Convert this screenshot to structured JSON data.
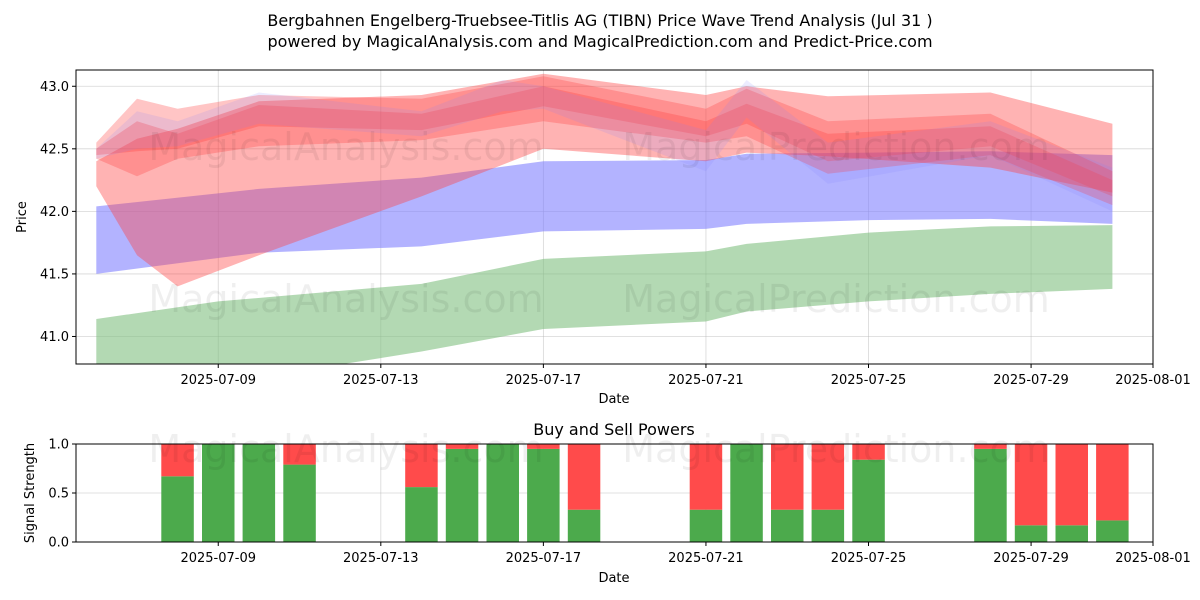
{
  "header": {
    "title_line1": "Bergbahnen Engelberg-Truebsee-Titlis AG (TIBN) Price Wave Trend Analysis (Jul 31 )",
    "title_line2": "powered by MagicalAnalysis.com and MagicalPrediction.com and Predict-Price.com"
  },
  "watermarks": [
    "MagicalAnalysis.com",
    "MagicalPrediction.com"
  ],
  "colors": {
    "blue_band": "#8080ff",
    "green_band": "#80c080",
    "red_band": "#ff4040",
    "buy": "#4caa4c",
    "sell": "#ff4b4b"
  },
  "chart_data": [
    {
      "type": "area",
      "title": "",
      "xlabel": "Date",
      "ylabel": "Price",
      "x_range": [
        "2025-07-05T12:00",
        "2025-08-01T00:00"
      ],
      "ylim": [
        40.78,
        43.13
      ],
      "x_ticks": [
        "2025-07-09",
        "2025-07-13",
        "2025-07-17",
        "2025-07-21",
        "2025-07-25",
        "2025-07-29",
        "2025-08-01"
      ],
      "y_ticks": [
        41.0,
        41.5,
        42.0,
        42.5,
        43.0
      ],
      "grid": true,
      "bands": [
        {
          "color": "blue",
          "opacity": 0.6,
          "x": [
            "2025-07-06",
            "2025-07-10",
            "2025-07-14",
            "2025-07-17",
            "2025-07-21",
            "2025-07-22",
            "2025-07-25",
            "2025-07-28",
            "2025-07-31"
          ],
          "upper": [
            42.04,
            42.18,
            42.27,
            42.4,
            42.41,
            42.46,
            42.47,
            42.48,
            42.45
          ],
          "lower": [
            41.5,
            41.67,
            41.72,
            41.84,
            41.86,
            41.9,
            41.93,
            41.94,
            41.9
          ]
        },
        {
          "color": "green",
          "opacity": 0.6,
          "x": [
            "2025-07-06",
            "2025-07-09",
            "2025-07-14",
            "2025-07-17",
            "2025-07-21",
            "2025-07-22",
            "2025-07-25",
            "2025-07-28",
            "2025-07-31"
          ],
          "upper": [
            41.14,
            41.28,
            41.42,
            41.62,
            41.68,
            41.74,
            41.83,
            41.88,
            41.89
          ],
          "lower": [
            40.78,
            40.62,
            40.88,
            41.06,
            41.12,
            41.2,
            41.28,
            41.34,
            41.38
          ]
        },
        {
          "color": "red",
          "opacity": 0.4,
          "x": [
            "2025-07-06",
            "2025-07-07",
            "2025-07-08",
            "2025-07-10",
            "2025-07-14",
            "2025-07-17",
            "2025-07-21",
            "2025-07-22",
            "2025-07-24",
            "2025-07-28",
            "2025-07-31"
          ],
          "upper": [
            42.4,
            42.58,
            42.66,
            42.88,
            42.93,
            43.1,
            42.93,
            43.0,
            42.92,
            42.95,
            42.7
          ],
          "lower": [
            42.2,
            41.65,
            41.4,
            41.65,
            42.12,
            42.5,
            42.4,
            42.47,
            42.44,
            42.35,
            42.15
          ]
        },
        {
          "color": "red",
          "opacity": 0.3,
          "x": [
            "2025-07-06",
            "2025-07-07",
            "2025-07-08",
            "2025-07-10",
            "2025-07-14",
            "2025-07-17",
            "2025-07-21",
            "2025-07-22",
            "2025-07-24",
            "2025-07-28",
            "2025-07-31"
          ],
          "upper": [
            42.55,
            42.9,
            42.82,
            42.93,
            42.9,
            43.08,
            42.82,
            42.98,
            42.72,
            42.78,
            42.32
          ],
          "lower": [
            42.42,
            42.28,
            42.42,
            42.52,
            42.57,
            42.72,
            42.55,
            42.6,
            42.3,
            42.45,
            42.05
          ]
        },
        {
          "color": "red",
          "opacity": 0.3,
          "x": [
            "2025-07-06",
            "2025-07-07",
            "2025-07-08",
            "2025-07-10",
            "2025-07-14",
            "2025-07-17",
            "2025-07-21",
            "2025-07-22",
            "2025-07-24",
            "2025-07-28",
            "2025-07-31"
          ],
          "upper": [
            42.5,
            42.72,
            42.62,
            42.85,
            42.78,
            43.0,
            42.72,
            42.86,
            42.62,
            42.68,
            42.25
          ],
          "lower": [
            42.45,
            42.48,
            42.5,
            42.68,
            42.65,
            42.84,
            42.6,
            42.7,
            42.4,
            42.52,
            42.12
          ]
        },
        {
          "color": "blue",
          "opacity": 0.15,
          "x": [
            "2025-07-06",
            "2025-07-07",
            "2025-07-08",
            "2025-07-10",
            "2025-07-14",
            "2025-07-16",
            "2025-07-17",
            "2025-07-21",
            "2025-07-22",
            "2025-07-24",
            "2025-07-28",
            "2025-07-31"
          ],
          "upper": [
            42.5,
            42.8,
            42.72,
            42.95,
            42.8,
            43.05,
            43.0,
            42.65,
            43.05,
            42.55,
            42.72,
            42.35
          ],
          "lower": [
            42.42,
            42.5,
            42.52,
            42.7,
            42.6,
            42.8,
            42.82,
            42.32,
            42.75,
            42.22,
            42.45,
            42.0
          ]
        }
      ]
    },
    {
      "type": "bar",
      "title": "Buy and Sell Powers",
      "xlabel": "Date",
      "ylabel": "Signal Strength",
      "ylim": [
        0,
        1
      ],
      "y_ticks": [
        "0.0",
        "0.5",
        "1.0"
      ],
      "x_ticks": [
        "2025-07-09",
        "2025-07-13",
        "2025-07-17",
        "2025-07-21",
        "2025-07-25",
        "2025-07-29",
        "2025-08-01"
      ],
      "grid": true,
      "dates": [
        "2025-07-08",
        "2025-07-09",
        "2025-07-10",
        "2025-07-11",
        "2025-07-14",
        "2025-07-15",
        "2025-07-16",
        "2025-07-17",
        "2025-07-18",
        "2025-07-21",
        "2025-07-22",
        "2025-07-23",
        "2025-07-24",
        "2025-07-25",
        "2025-07-28",
        "2025-07-29",
        "2025-07-30",
        "2025-07-31"
      ],
      "buy": [
        0.67,
        1.0,
        1.0,
        0.79,
        0.56,
        0.95,
        1.0,
        0.95,
        0.33,
        0.33,
        1.0,
        0.33,
        0.33,
        0.84,
        0.95,
        0.17,
        0.17,
        0.22
      ],
      "sell": [
        0.33,
        0.0,
        0.0,
        0.21,
        0.44,
        0.05,
        0.0,
        0.05,
        0.67,
        0.67,
        0.0,
        0.67,
        0.67,
        0.16,
        0.05,
        0.83,
        0.83,
        0.78
      ]
    }
  ]
}
